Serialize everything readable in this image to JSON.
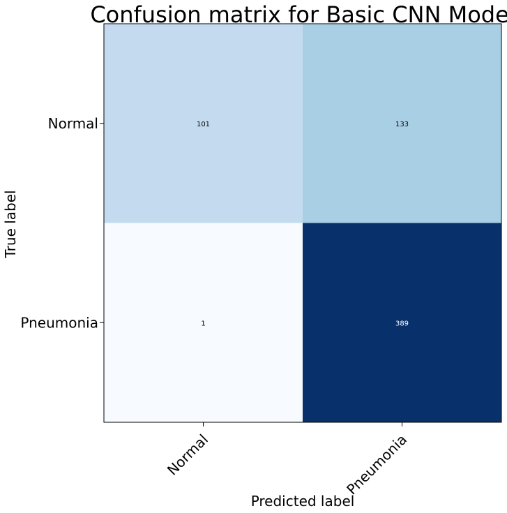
{
  "chart_data": {
    "type": "heatmap",
    "title": "Confusion matrix for Basic CNN Model",
    "xlabel": "Predicted label",
    "ylabel": "True label",
    "x_categories": [
      "Normal",
      "Pneumonia"
    ],
    "y_categories": [
      "Normal",
      "Pneumonia"
    ],
    "matrix": [
      [
        101,
        133
      ],
      [
        1,
        389
      ]
    ],
    "colormap": "Blues",
    "colors": {
      "cells": [
        [
          "#c4dbef",
          "#a9cfe5"
        ],
        [
          "#f7fbff",
          "#08306b"
        ]
      ],
      "dark_text": "#000000",
      "light_text": "#ffffff",
      "axis": "#000000"
    }
  }
}
